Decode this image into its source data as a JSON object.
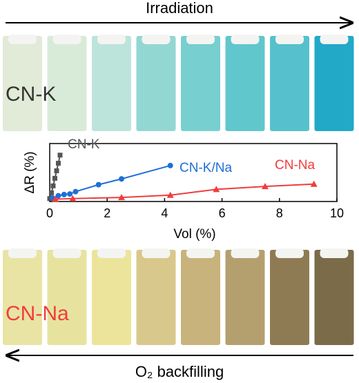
{
  "chart_data": {
    "type": "line",
    "annotations": [
      "Irradiation",
      "CN-K",
      "CN-Na",
      "O₂ backfilling"
    ],
    "x_label": "Vol (%)",
    "y_label": "ΔR (%)",
    "xlim": [
      0,
      10
    ],
    "xticks": [
      0,
      2,
      4,
      6,
      8,
      10
    ],
    "ylim": [
      0,
      100
    ],
    "series": [
      {
        "name": "CN-K",
        "color": "#555555",
        "marker": "square",
        "x": [
          0,
          0.06,
          0.12,
          0.18,
          0.24,
          0.3,
          0.36
        ],
        "values": [
          5,
          15,
          27,
          40,
          53,
          66,
          80
        ]
      },
      {
        "name": "CN-K/Na",
        "color": "#1f6fd6",
        "marker": "circle",
        "x": [
          0.1,
          0.3,
          0.5,
          0.7,
          0.9,
          1.7,
          2.5,
          4.2
        ],
        "values": [
          6,
          10,
          12,
          13,
          17,
          29,
          39,
          62
        ]
      },
      {
        "name": "CN-Na",
        "color": "#f03c3c",
        "marker": "triangle",
        "x": [
          0.2,
          0.8,
          2.5,
          4.2,
          5.8,
          7.5,
          9.2
        ],
        "values": [
          4,
          5,
          7,
          11,
          21,
          26,
          30
        ]
      }
    ]
  }
}
